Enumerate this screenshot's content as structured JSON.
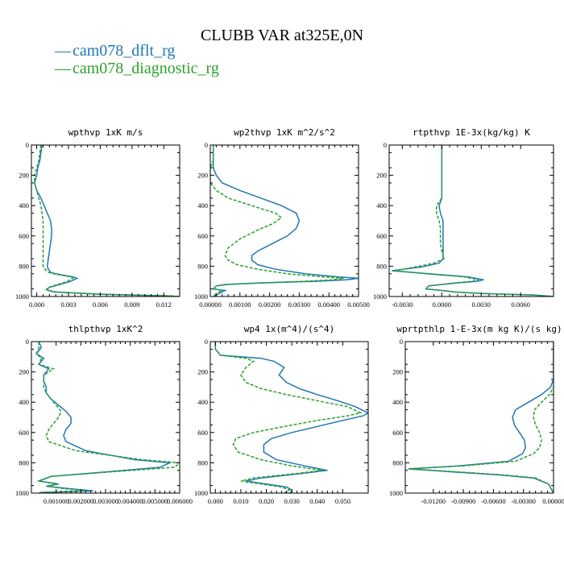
{
  "figure": {
    "title": "CLUBB VAR at325E,0N",
    "legend": [
      {
        "label": "cam078_dflt_rg",
        "color": "#1f77b4",
        "style": "solid"
      },
      {
        "label": "cam078_diagnostic_rg",
        "color": "#2ca02c",
        "style": "dashed"
      }
    ]
  },
  "chart_data": [
    {
      "type": "line",
      "title": "wpthvp  1xK m/s",
      "xlim": [
        -0.0005,
        0.0135
      ],
      "xticks": [
        0.0,
        0.003,
        0.006,
        0.009,
        0.012
      ],
      "xticklabels": [
        "0.000",
        "0.003",
        "0.006",
        "0.009",
        "0.012"
      ],
      "ylim": [
        1000,
        0
      ],
      "yticks": [
        0,
        200,
        400,
        600,
        800,
        1000
      ],
      "series": [
        {
          "name": "cam078_dflt_rg",
          "x": [
            0.0005,
            0.0004,
            0.0003,
            0.0001,
            0.0,
            -0.0002,
            0.0,
            0.0004,
            0.0007,
            0.001,
            0.0013,
            0.0014,
            0.0014,
            0.0013,
            0.0012,
            0.0011,
            0.001,
            0.0011,
            0.0013,
            0.0018,
            0.0026,
            0.0034,
            0.0038,
            0.0032,
            0.0022,
            0.0012,
            0.0009,
            0.0016,
            0.006,
            0.012,
            0.0135
          ],
          "y": [
            0,
            50,
            100,
            150,
            200,
            250,
            300,
            350,
            400,
            450,
            500,
            550,
            600,
            650,
            700,
            750,
            800,
            820,
            840,
            850,
            860,
            870,
            880,
            900,
            920,
            940,
            955,
            970,
            985,
            995,
            1000
          ]
        },
        {
          "name": "cam078_diagnostic_rg",
          "x": [
            0.0004,
            0.0003,
            0.0002,
            0.0,
            -0.0002,
            -0.0002,
            0.0,
            0.0002,
            0.0004,
            0.0005,
            0.0006,
            0.0006,
            0.0006,
            0.0006,
            0.0006,
            0.0006,
            0.0006,
            0.0008,
            0.0011,
            0.0016,
            0.0024,
            0.0032,
            0.0034,
            0.0029,
            0.002,
            0.0011,
            0.0009,
            0.0018,
            0.0065,
            0.0125,
            0.0135
          ],
          "y": [
            0,
            50,
            100,
            150,
            200,
            250,
            300,
            350,
            400,
            450,
            500,
            550,
            600,
            650,
            700,
            750,
            800,
            820,
            840,
            850,
            860,
            870,
            880,
            900,
            920,
            940,
            955,
            970,
            985,
            995,
            1000
          ]
        }
      ]
    },
    {
      "type": "line",
      "title": "wp2thvp  1xK m^2/s^2",
      "xlim": [
        0.0,
        0.005
      ],
      "xticks": [
        0.0,
        0.001,
        0.002,
        0.003,
        0.004,
        0.005
      ],
      "xticklabels": [
        "0.00000",
        "0.00100",
        "0.00200",
        "0.00300",
        "0.00400",
        "0.00500"
      ],
      "ylim": [
        1000,
        0
      ],
      "yticks": [
        0,
        200,
        400,
        600,
        800,
        1000
      ],
      "series": [
        {
          "name": "cam078_dflt_rg",
          "x": [
            0.0001,
            0.0001,
            0.0001,
            0.0001,
            0.0002,
            0.0004,
            0.001,
            0.0017,
            0.0024,
            0.0029,
            0.003,
            0.0029,
            0.0026,
            0.0021,
            0.0016,
            0.0014,
            0.0014,
            0.0016,
            0.0022,
            0.0032,
            0.0043,
            0.005,
            0.0046,
            0.0035,
            0.0018,
            0.0006,
            0.0002,
            0.0001,
            0.0005,
            0.0003,
            0.0001
          ],
          "y": [
            0,
            50,
            100,
            150,
            200,
            250,
            300,
            350,
            400,
            450,
            500,
            550,
            600,
            650,
            700,
            730,
            760,
            790,
            820,
            850,
            870,
            880,
            890,
            900,
            910,
            920,
            930,
            950,
            960,
            980,
            1000
          ]
        },
        {
          "name": "cam078_diagnostic_rg",
          "x": [
            0.0001,
            0.0001,
            0.0001,
            0.0,
            0.0,
            0.0,
            0.0002,
            0.0006,
            0.0014,
            0.0022,
            0.0024,
            0.0021,
            0.0016,
            0.001,
            0.0006,
            0.0005,
            0.0006,
            0.0009,
            0.0016,
            0.0026,
            0.0038,
            0.0045,
            0.0041,
            0.0031,
            0.0016,
            0.0005,
            0.0002,
            0.0001,
            0.0004,
            0.0002,
            0.0001
          ],
          "y": [
            0,
            50,
            100,
            150,
            200,
            250,
            300,
            350,
            400,
            450,
            480,
            520,
            560,
            620,
            680,
            730,
            760,
            790,
            820,
            850,
            870,
            880,
            890,
            900,
            910,
            920,
            930,
            950,
            960,
            980,
            1000
          ]
        }
      ]
    },
    {
      "type": "line",
      "title": "rtpthvp  1E-3x(kg/kg) K",
      "xlim": [
        -0.004,
        0.0085
      ],
      "xticks": [
        -0.003,
        0.0,
        0.003,
        0.006
      ],
      "xticklabels": [
        "-0.0030",
        "0.0000",
        "0.0030",
        "0.0060"
      ],
      "ylim": [
        1000,
        0
      ],
      "yticks": [
        0,
        200,
        400,
        600,
        800,
        1000
      ],
      "series": [
        {
          "name": "cam078_dflt_rg",
          "x": [
            0.0,
            0.0,
            0.0,
            0.0,
            0.0,
            0.0,
            0.0,
            0.0,
            -0.0002,
            -0.0001,
            0.0001,
            0.0001,
            0.0001,
            0.0001,
            0.0001,
            0.0001,
            -0.0002,
            -0.0015,
            -0.0038,
            -0.001,
            0.002,
            0.0032,
            0.0026,
            0.0012,
            -0.001,
            -0.0012,
            0.0,
            0.001,
            0.003,
            0.007,
            0.0085
          ],
          "y": [
            0,
            50,
            100,
            150,
            200,
            250,
            300,
            350,
            400,
            450,
            500,
            550,
            600,
            650,
            700,
            750,
            780,
            805,
            830,
            850,
            870,
            890,
            900,
            910,
            930,
            950,
            960,
            970,
            980,
            990,
            1000
          ]
        },
        {
          "name": "cam078_diagnostic_rg",
          "x": [
            0.0,
            0.0,
            0.0,
            0.0,
            0.0,
            0.0,
            0.0,
            0.0,
            -0.0004,
            -0.0004,
            -0.0002,
            -0.0001,
            -0.0001,
            -0.0001,
            0.0,
            0.0002,
            -0.0006,
            -0.002,
            -0.0036,
            -0.0012,
            0.0017,
            0.0028,
            0.0023,
            0.001,
            -0.001,
            -0.0012,
            0.0,
            0.001,
            0.003,
            0.007,
            0.0085
          ],
          "y": [
            0,
            50,
            100,
            150,
            200,
            250,
            300,
            350,
            400,
            450,
            500,
            550,
            600,
            650,
            700,
            750,
            780,
            805,
            830,
            850,
            870,
            890,
            900,
            910,
            930,
            950,
            960,
            970,
            980,
            990,
            1000
          ]
        }
      ]
    },
    {
      "type": "line",
      "title": "thlpthvp  1xK^2",
      "xlim": [
        0.0,
        0.006
      ],
      "xticks": [
        0.001,
        0.002,
        0.003,
        0.004,
        0.005,
        0.006
      ],
      "xticklabels": [
        "0.001000",
        "0.002000",
        "0.003000",
        "0.004000",
        "0.005000",
        "0.006000"
      ],
      "ylim": [
        1000,
        0
      ],
      "yticks": [
        0,
        200,
        400,
        600,
        800,
        1000
      ],
      "series": [
        {
          "name": "cam078_dflt_rg",
          "x": [
            0.0003,
            0.0004,
            0.0002,
            0.0005,
            0.0003,
            0.0007,
            0.0005,
            0.0005,
            0.0006,
            0.0006,
            0.0008,
            0.0011,
            0.0014,
            0.0016,
            0.0016,
            0.0014,
            0.0013,
            0.0014,
            0.0022,
            0.0042,
            0.0056,
            0.0052,
            0.003,
            0.0008,
            0.0003,
            0.0011,
            0.0006,
            0.0015,
            0.0025,
            0.0004,
            0.0003
          ],
          "y": [
            0,
            40,
            80,
            110,
            150,
            180,
            220,
            260,
            300,
            340,
            380,
            420,
            460,
            500,
            540,
            580,
            620,
            660,
            720,
            780,
            800,
            830,
            860,
            890,
            920,
            940,
            955,
            970,
            985,
            995,
            1000
          ]
        },
        {
          "name": "cam078_diagnostic_rg",
          "x": [
            0.0003,
            0.0003,
            0.0002,
            0.0004,
            0.0003,
            0.0009,
            0.0005,
            0.0005,
            0.0005,
            0.0006,
            0.0008,
            0.001,
            0.0012,
            0.0011,
            0.0009,
            0.0007,
            0.0006,
            0.0007,
            0.0018,
            0.0045,
            0.006,
            0.0058,
            0.0032,
            0.0008,
            0.0003,
            0.001,
            0.0007,
            0.0013,
            0.0022,
            0.0004,
            0.0003
          ],
          "y": [
            0,
            40,
            80,
            110,
            150,
            180,
            220,
            260,
            300,
            340,
            380,
            420,
            460,
            500,
            540,
            580,
            620,
            660,
            720,
            780,
            800,
            830,
            860,
            890,
            920,
            940,
            955,
            970,
            985,
            995,
            1000
          ]
        }
      ]
    },
    {
      "type": "line",
      "title": "wp4  1x(m^4)/(s^4)",
      "xlim": [
        -0.002,
        0.06
      ],
      "xticks": [
        0.0,
        0.01,
        0.02,
        0.03,
        0.04,
        0.05
      ],
      "xticklabels": [
        "0.000",
        "0.010",
        "0.020",
        "0.030",
        "0.040",
        "0.050"
      ],
      "ylim": [
        1000,
        0
      ],
      "yticks": [
        0,
        200,
        400,
        600,
        800,
        1000
      ],
      "series": [
        {
          "name": "cam078_dflt_rg",
          "x": [
            0.0,
            0.0,
            0.002,
            0.018,
            0.023,
            0.027,
            0.025,
            0.028,
            0.033,
            0.04,
            0.048,
            0.055,
            0.06,
            0.058,
            0.05,
            0.04,
            0.03,
            0.022,
            0.019,
            0.019,
            0.024,
            0.035,
            0.044,
            0.034,
            0.018,
            0.012,
            0.02,
            0.028,
            0.03,
            0.03,
            0.029
          ],
          "y": [
            0,
            50,
            90,
            110,
            130,
            170,
            220,
            270,
            310,
            350,
            390,
            430,
            470,
            490,
            520,
            560,
            600,
            640,
            680,
            730,
            780,
            820,
            850,
            870,
            900,
            920,
            940,
            960,
            980,
            990,
            1000
          ]
        },
        {
          "name": "cam078_diagnostic_rg",
          "x": [
            0.0,
            0.0,
            0.002,
            0.012,
            0.015,
            0.012,
            0.01,
            0.012,
            0.018,
            0.028,
            0.04,
            0.052,
            0.057,
            0.052,
            0.04,
            0.027,
            0.015,
            0.008,
            0.007,
            0.009,
            0.018,
            0.03,
            0.042,
            0.032,
            0.015,
            0.01,
            0.018,
            0.026,
            0.029,
            0.028,
            0.027
          ],
          "y": [
            0,
            50,
            90,
            110,
            130,
            170,
            220,
            270,
            310,
            350,
            390,
            430,
            470,
            490,
            520,
            560,
            600,
            640,
            680,
            730,
            780,
            820,
            850,
            870,
            900,
            920,
            940,
            960,
            980,
            990,
            1000
          ]
        }
      ]
    },
    {
      "type": "line",
      "title": "wprtpthlp  1-E-3x(m kg K)/(s kg)",
      "xlim": [
        -0.0148,
        0.0
      ],
      "xticks": [
        -0.012,
        -0.009,
        -0.006,
        -0.003,
        0.0
      ],
      "xticklabels": [
        "-0.01200",
        "-0.00900",
        "-0.00600",
        "-0.00300",
        "0.00000"
      ],
      "ylim": [
        1000,
        0
      ],
      "yticks": [
        0,
        200,
        400,
        600,
        800,
        1000
      ],
      "series": [
        {
          "name": "cam078_dflt_rg",
          "x": [
            0.0,
            0.0,
            0.0,
            0.0,
            0.0,
            0.0,
            -0.0003,
            -0.0012,
            -0.0025,
            -0.0038,
            -0.0041,
            -0.0039,
            -0.0034,
            -0.0029,
            -0.0028,
            -0.0031,
            -0.0045,
            -0.0095,
            -0.0145,
            -0.01,
            -0.0055,
            -0.002,
            -0.0005,
            0.0
          ],
          "y": [
            0,
            50,
            100,
            150,
            200,
            250,
            300,
            350,
            400,
            450,
            500,
            550,
            600,
            650,
            700,
            740,
            790,
            820,
            840,
            860,
            880,
            900,
            940,
            1000
          ]
        },
        {
          "name": "cam078_diagnostic_rg",
          "x": [
            0.0,
            0.0,
            0.0,
            0.0,
            0.0,
            0.0,
            0.0,
            -0.0004,
            -0.0012,
            -0.0019,
            -0.002,
            -0.0018,
            -0.0014,
            -0.0012,
            -0.0014,
            -0.002,
            -0.0038,
            -0.009,
            -0.0145,
            -0.0095,
            -0.005,
            -0.0018,
            -0.0005,
            0.0
          ],
          "y": [
            0,
            50,
            100,
            150,
            200,
            250,
            300,
            350,
            400,
            450,
            500,
            550,
            600,
            650,
            700,
            740,
            790,
            820,
            840,
            860,
            880,
            900,
            940,
            1000
          ]
        }
      ]
    }
  ]
}
